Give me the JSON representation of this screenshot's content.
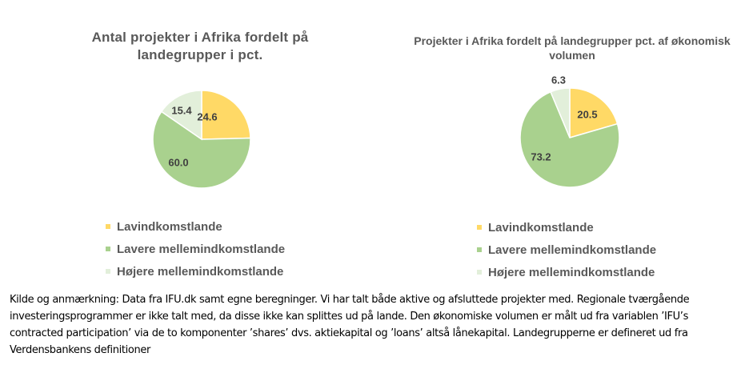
{
  "colors": {
    "Lavindkomstlande": "#ffd966",
    "Lavere mellemindkomstlande": "#a9d18e",
    "Højere mellemindkomstlande": "#e2efda"
  },
  "chart_data": [
    {
      "type": "pie",
      "title": "Antal projekter i Afrika fordelt på landegrupper i pct.",
      "categories": [
        "Lavindkomstlande",
        "Lavere mellemindkomstlande",
        "Højere mellemindkomstlande"
      ],
      "values": [
        24.6,
        60.0,
        15.4
      ],
      "labels": [
        "24.6",
        "60.0",
        "15.4"
      ],
      "legend_position": "bottom"
    },
    {
      "type": "pie",
      "title": "Projekter i Afrika fordelt på landegrupper pct. af økonomisk volumen",
      "categories": [
        "Lavindkomstlande",
        "Lavere mellemindkomstlande",
        "Højere mellemindkomstlande"
      ],
      "values": [
        20.5,
        73.2,
        6.3
      ],
      "labels": [
        "20.5",
        "73.2",
        "6.3"
      ],
      "legend_position": "bottom"
    }
  ],
  "footnote": "Kilde og anmærkning: Data fra IFU.dk samt egne beregninger. Vi har talt både aktive og afsluttede projekter med. Regionale tværgående investeringsprogrammer er ikke talt med, da disse ikke kan splittes ud på lande. Den økonomiske volumen er målt ud fra variablen ’IFU’s contracted participation’ via de to komponenter ’shares’ dvs. aktiekapital og ’loans’ altså lånekapital. Landegrupperne er defineret ud fra Verdensbankens definitioner"
}
